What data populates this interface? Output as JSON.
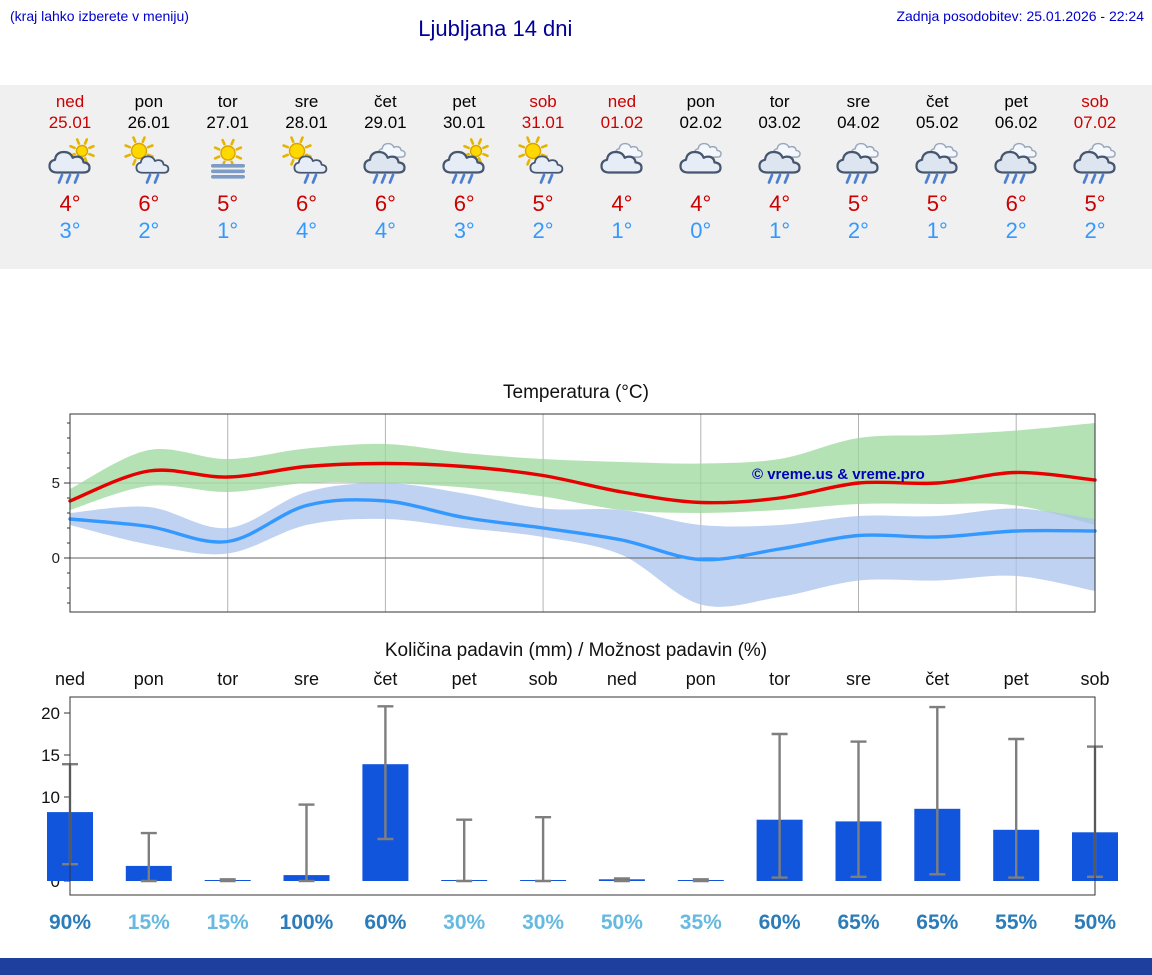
{
  "header": {
    "note": "(kraj lahko izberete v meniju)",
    "title": "Ljubljana 14 dni",
    "updated": "Zadnja posodobitev: 25.01.2026 - 22:24"
  },
  "colors": {
    "weekend_red": "#cc0000",
    "high_temp_red": "#cc0000",
    "low_temp_blue": "#3399ff",
    "link_blue": "#0000cc",
    "title_blue": "#000099",
    "strip_bg": "#f0f0f0",
    "watermark": "#0000bb",
    "pop_high": "#2b7cb8",
    "pop_low": "#66b9e0",
    "footer_bar": "#1e3f9e",
    "whisker_gray": "#7e7e7e"
  },
  "days": [
    {
      "name": "ned",
      "date": "25.01",
      "weekend": true,
      "icon": "sun-cloud-rain",
      "hi": "4°",
      "lo": "3°"
    },
    {
      "name": "pon",
      "date": "26.01",
      "weekend": false,
      "icon": "sun-cloud-lightrain",
      "hi": "6°",
      "lo": "2°"
    },
    {
      "name": "tor",
      "date": "27.01",
      "weekend": false,
      "icon": "fog-sun",
      "hi": "5°",
      "lo": "1°"
    },
    {
      "name": "sre",
      "date": "28.01",
      "weekend": false,
      "icon": "sun-cloud-lightrain",
      "hi": "6°",
      "lo": "4°"
    },
    {
      "name": "čet",
      "date": "29.01",
      "weekend": false,
      "icon": "cloud-rain",
      "hi": "6°",
      "lo": "4°"
    },
    {
      "name": "pet",
      "date": "30.01",
      "weekend": false,
      "icon": "sun-cloud-rain",
      "hi": "6°",
      "lo": "3°"
    },
    {
      "name": "sob",
      "date": "31.01",
      "weekend": true,
      "icon": "sun-cloud-lightrain",
      "hi": "5°",
      "lo": "2°"
    },
    {
      "name": "ned",
      "date": "01.02",
      "weekend": true,
      "icon": "cloudy",
      "hi": "4°",
      "lo": "1°"
    },
    {
      "name": "pon",
      "date": "02.02",
      "weekend": false,
      "icon": "cloudy",
      "hi": "4°",
      "lo": "0°"
    },
    {
      "name": "tor",
      "date": "03.02",
      "weekend": false,
      "icon": "cloud-rain",
      "hi": "4°",
      "lo": "1°"
    },
    {
      "name": "sre",
      "date": "04.02",
      "weekend": false,
      "icon": "cloud-rain",
      "hi": "5°",
      "lo": "2°"
    },
    {
      "name": "čet",
      "date": "05.02",
      "weekend": false,
      "icon": "cloud-rain",
      "hi": "5°",
      "lo": "1°"
    },
    {
      "name": "pet",
      "date": "06.02",
      "weekend": false,
      "icon": "cloud-rain",
      "hi": "6°",
      "lo": "2°"
    },
    {
      "name": "sob",
      "date": "07.02",
      "weekend": true,
      "icon": "cloud-rain",
      "hi": "5°",
      "lo": "2°"
    }
  ],
  "chart_data": [
    {
      "type": "line",
      "title": "Temperatura (°C)",
      "x": [
        "ned 25.01",
        "pon 26.01",
        "tor 27.01",
        "sre 28.01",
        "čet 29.01",
        "pet 30.01",
        "sob 31.01",
        "ned 01.02",
        "pon 02.02",
        "tor 03.02",
        "sre 04.02",
        "čet 05.02",
        "pet 06.02",
        "sob 07.02"
      ],
      "series": [
        {
          "name": "max temperatura",
          "color": "#e60000",
          "values": [
            3.8,
            5.8,
            5.4,
            6.1,
            6.3,
            6.1,
            5.5,
            4.4,
            3.7,
            4.0,
            5.0,
            5.0,
            5.7,
            5.2
          ]
        },
        {
          "name": "min temperatura",
          "color": "#3399ff",
          "values": [
            2.6,
            2.1,
            1.1,
            3.5,
            3.8,
            2.7,
            2.0,
            1.2,
            -0.1,
            0.6,
            1.5,
            1.4,
            1.8,
            1.8
          ]
        }
      ],
      "bands": [
        {
          "name": "max razpon",
          "color": "#9cd89c",
          "upper": [
            4.6,
            7.2,
            6.6,
            7.3,
            7.6,
            7.0,
            6.6,
            6.4,
            6.3,
            6.6,
            8.0,
            8.2,
            8.5,
            9.0
          ],
          "lower": [
            3.2,
            4.8,
            4.4,
            5.0,
            5.0,
            4.7,
            4.1,
            3.2,
            3.0,
            3.2,
            3.6,
            3.6,
            3.5,
            2.2
          ]
        },
        {
          "name": "min razpon",
          "color": "#aac3ee",
          "upper": [
            3.0,
            3.4,
            2.0,
            4.4,
            5.0,
            4.3,
            3.3,
            3.2,
            2.2,
            2.2,
            2.8,
            2.8,
            3.3,
            2.6
          ],
          "lower": [
            2.2,
            0.9,
            0.3,
            2.2,
            2.6,
            2.0,
            1.4,
            0.2,
            -3.1,
            -2.6,
            -1.5,
            -1.5,
            -1.2,
            -2.2
          ]
        }
      ],
      "ylim": [
        -3.6,
        9.6
      ],
      "yticks": [
        0,
        5
      ],
      "grid_x_every": 2,
      "grid": true,
      "legend": "none",
      "watermark": "© vreme.us & vreme.pro"
    },
    {
      "type": "bar",
      "title": "Količina padavin (mm) / Možnost padavin (%)",
      "categories": [
        "ned",
        "pon",
        "tor",
        "sre",
        "čet",
        "pet",
        "sob",
        "ned",
        "pon",
        "tor",
        "sre",
        "čet",
        "pet",
        "sob"
      ],
      "values": [
        8.2,
        1.8,
        0.1,
        0.7,
        13.9,
        0.1,
        0.1,
        0.2,
        0.1,
        7.3,
        7.1,
        8.6,
        6.1,
        5.8
      ],
      "whisker_low": [
        2.0,
        0.0,
        0.0,
        0.0,
        5.0,
        0.0,
        0.0,
        0.0,
        0.0,
        0.4,
        0.5,
        0.8,
        0.4,
        0.5
      ],
      "whisker_high": [
        13.9,
        5.7,
        0.2,
        9.1,
        20.8,
        7.3,
        7.6,
        0.3,
        0.2,
        17.5,
        16.6,
        20.7,
        16.9,
        16.0
      ],
      "pop_labels": [
        "90%",
        "15%",
        "15%",
        "100%",
        "60%",
        "30%",
        "30%",
        "50%",
        "35%",
        "60%",
        "65%",
        "65%",
        "55%",
        "50%"
      ],
      "pop_percent": [
        90,
        15,
        15,
        100,
        60,
        30,
        30,
        50,
        35,
        60,
        65,
        65,
        55,
        50
      ],
      "pop_tone": [
        "dark",
        "light",
        "light",
        "dark",
        "dark",
        "light",
        "light",
        "light",
        "light",
        "dark",
        "dark",
        "dark",
        "dark",
        "dark"
      ],
      "ylim": [
        0,
        22
      ],
      "yticks": [
        0,
        5,
        10,
        15,
        20
      ],
      "bar_color": "#1155dd",
      "xlabel": "",
      "ylabel": ""
    }
  ]
}
